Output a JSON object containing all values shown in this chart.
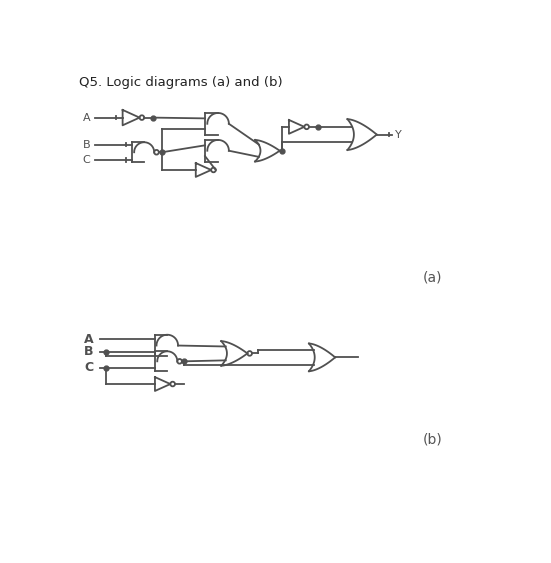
{
  "title": "Q5. Logic diagrams (a) and (b)",
  "label_a": "(a)",
  "label_b": "(b)",
  "bg_color": "#ffffff",
  "line_color": "#505050",
  "title_fontsize": 9.5,
  "label_fontsize": 10,
  "lw": 1.3,
  "bub_r": 3.0
}
